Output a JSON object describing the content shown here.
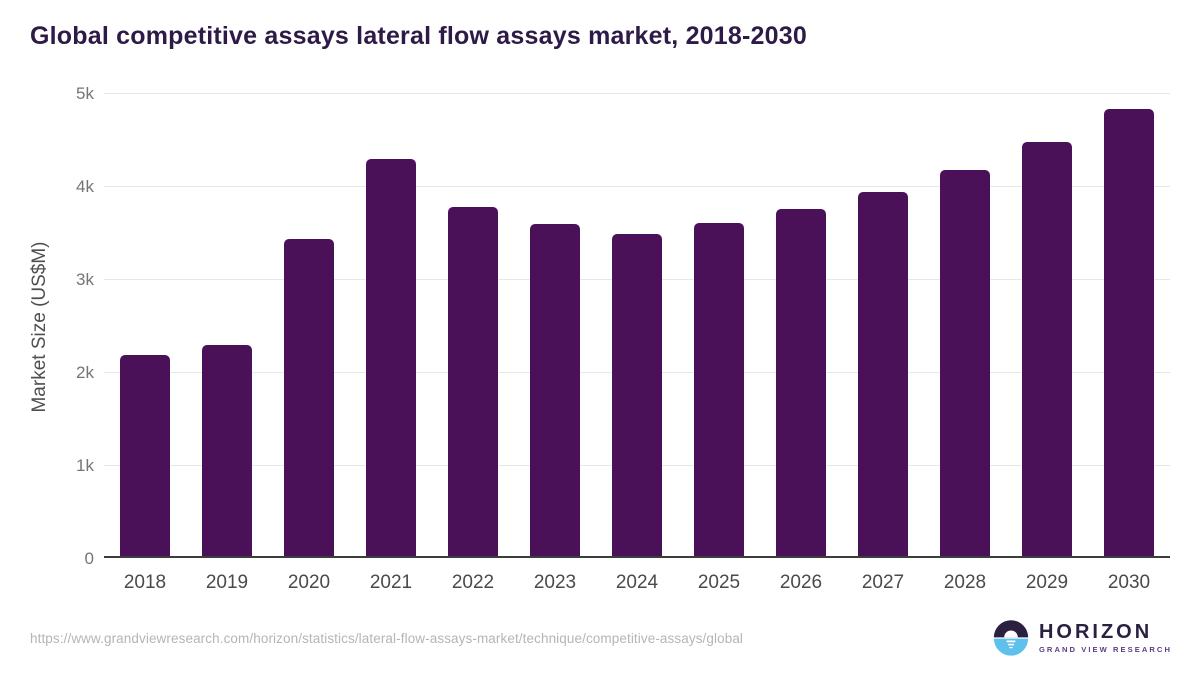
{
  "page": {
    "title": "Global competitive assays lateral flow assays market, 2018-2030",
    "source_url": "https://www.grandviewresearch.com/horizon/statistics/lateral-flow-assays-market/technique/competitive-assays/global"
  },
  "logo": {
    "brand": "HORIZON",
    "tagline": "GRAND VIEW RESEARCH",
    "icon": "horizon-sun-icon",
    "icon_dark_color": "#2b2040",
    "icon_blue_color": "#5ec1ec"
  },
  "chart_data": {
    "type": "bar",
    "title": "Global competitive assays lateral flow assays market, 2018-2030",
    "categories": [
      "2018",
      "2019",
      "2020",
      "2021",
      "2022",
      "2023",
      "2024",
      "2025",
      "2026",
      "2027",
      "2028",
      "2029",
      "2030"
    ],
    "values": [
      2160,
      2270,
      3410,
      4270,
      3750,
      3570,
      3460,
      3580,
      3730,
      3910,
      4150,
      4450,
      4810
    ],
    "xlabel": "",
    "ylabel": "Market Size (US$M)",
    "ylim": [
      0,
      5000
    ],
    "yticks": [
      {
        "value": 0,
        "label": "0"
      },
      {
        "value": 1000,
        "label": "1k"
      },
      {
        "value": 2000,
        "label": "2k"
      },
      {
        "value": 3000,
        "label": "3k"
      },
      {
        "value": 4000,
        "label": "4k"
      },
      {
        "value": 5000,
        "label": "5k"
      }
    ],
    "grid": true,
    "legend": false,
    "bar_color": "#4A1159"
  },
  "colors": {
    "background": "#ffffff",
    "title_text": "#2e1a47",
    "bar": "#4A1159",
    "gridline": "#e7e7e7",
    "axis_line": "#3c3c3c",
    "y_tick_text": "#757575",
    "x_tick_text": "#4a4a4a",
    "url_text": "#b5b5b5"
  }
}
